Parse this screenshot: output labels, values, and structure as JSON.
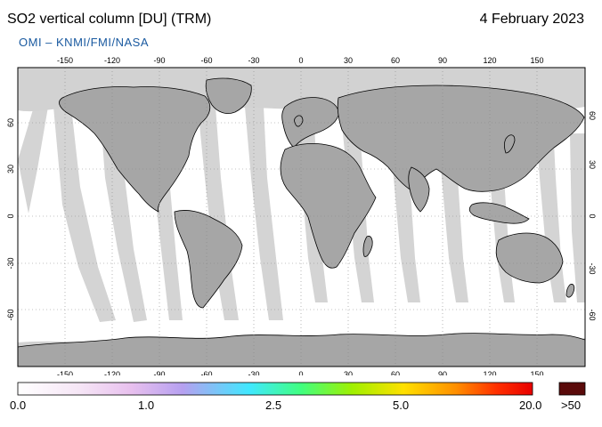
{
  "header": {
    "title": "SO2 vertical column [DU] (TRM)",
    "date": "4 February 2023",
    "credit": "OMI  –  KNMI/FMI/NASA"
  },
  "map": {
    "lon_ticks": [
      "-150",
      "-120",
      "-90",
      "-60",
      "-30",
      "0",
      "30",
      "60",
      "90",
      "120",
      "150"
    ],
    "lat_ticks": [
      "60",
      "30",
      "0",
      "-30",
      "-60"
    ],
    "colors": {
      "land": "#a6a6a6",
      "no_data": "#d2d2d2",
      "ocean": "#ffffff",
      "coast": "#000000",
      "grid": "#888888"
    }
  },
  "colorbar": {
    "labels": [
      "0.0",
      "1.0",
      "2.5",
      "5.0",
      "20.0"
    ],
    "overflow_label": ">50",
    "overflow_color": "#5a0a0a",
    "stops": [
      "#ffffff",
      "#f6e6f6",
      "#e8c0ee",
      "#b6a0f0",
      "#40e8ff",
      "#40ff80",
      "#a0f000",
      "#ffe000",
      "#ff9000",
      "#ff3000",
      "#e80000"
    ]
  }
}
